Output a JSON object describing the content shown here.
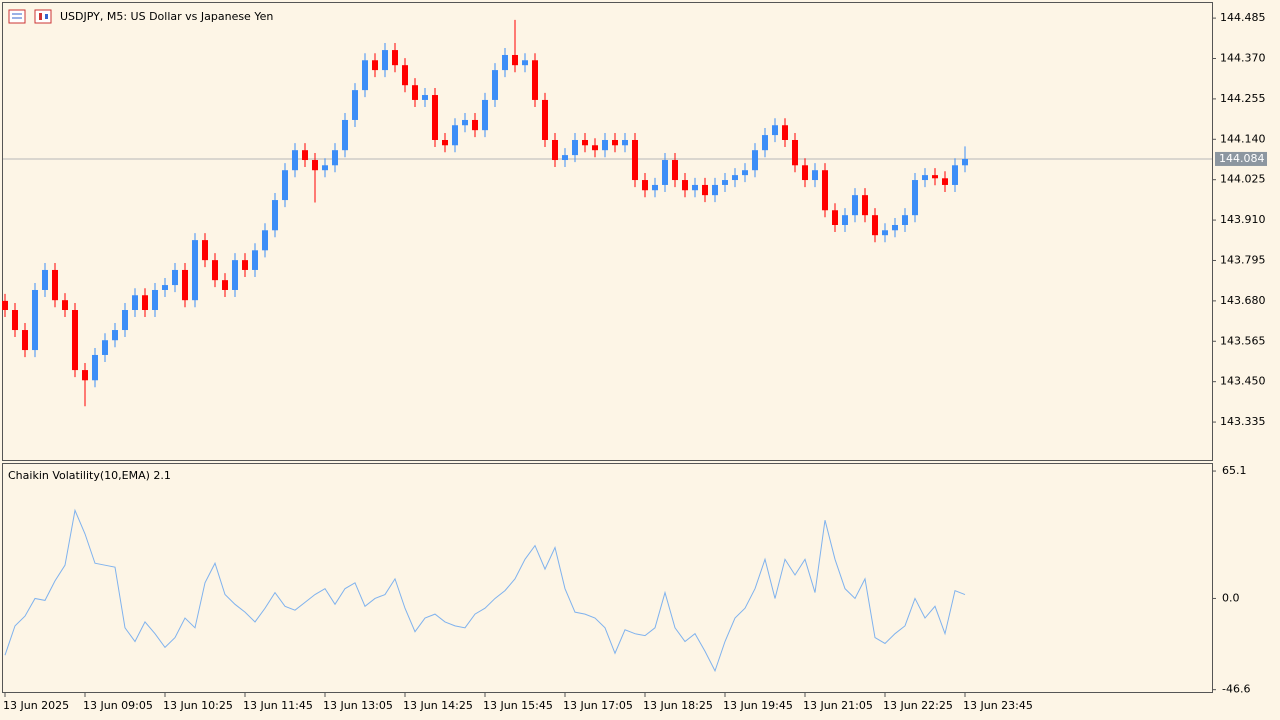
{
  "chart_data": [
    {
      "type": "candlestick",
      "title": "USDJPY, M5:  US Dollar vs Japanese Yen",
      "up_color": "#3d8ef7",
      "down_color": "#ff0000",
      "ylim": [
        143.227,
        144.528
      ],
      "yticks": [
        144.485,
        {
          "value": 144.37,
          "label": "144.370"
        },
        144.255,
        {
          "value": 144.14,
          "label": "144.140"
        },
        144.025,
        {
          "value": 143.91,
          "label": "143.910"
        },
        143.795,
        {
          "value": 143.68,
          "label": "143.680"
        },
        143.565,
        {
          "value": 143.45,
          "label": "143.450"
        },
        143.335
      ],
      "current_price": 144.084,
      "xticks": [
        {
          "value": 0,
          "label": "13 Jun 2025"
        },
        {
          "value": 8,
          "label": "13 Jun 09:05"
        },
        {
          "value": 16,
          "label": "13 Jun 10:25"
        },
        {
          "value": 24,
          "label": "13 Jun 11:45"
        },
        {
          "value": 32,
          "label": "13 Jun 13:05"
        },
        {
          "value": 40,
          "label": "13 Jun 14:25"
        },
        {
          "value": 48,
          "label": "13 Jun 15:45"
        },
        {
          "value": 56,
          "label": "13 Jun 17:05"
        },
        {
          "value": 64,
          "label": "13 Jun 18:25"
        },
        {
          "value": 72,
          "label": "13 Jun 19:45"
        },
        {
          "value": 80,
          "label": "13 Jun 21:05"
        },
        {
          "value": 88,
          "label": "13 Jun 22:25"
        },
        {
          "value": 96,
          "label": "13 Jun 23:45"
        }
      ],
      "candles": [
        [
          143.68,
          143.7,
          143.634,
          143.654
        ],
        [
          143.654,
          143.674,
          143.577,
          143.597
        ],
        [
          143.597,
          143.617,
          143.52,
          143.54
        ],
        [
          143.54,
          143.731,
          143.52,
          143.711
        ],
        [
          143.711,
          143.788,
          143.691,
          143.768
        ],
        [
          143.768,
          143.788,
          143.662,
          143.682
        ],
        [
          143.682,
          143.702,
          143.634,
          143.654
        ],
        [
          143.654,
          143.674,
          143.463,
          143.483
        ],
        [
          143.483,
          143.503,
          143.38,
          143.454
        ],
        [
          143.454,
          143.546,
          143.434,
          143.526
        ],
        [
          143.526,
          143.588,
          143.506,
          143.568
        ],
        [
          143.568,
          143.617,
          143.548,
          143.597
        ],
        [
          143.597,
          143.674,
          143.577,
          143.654
        ],
        [
          143.654,
          143.716,
          143.634,
          143.696
        ],
        [
          143.696,
          143.716,
          143.634,
          143.654
        ],
        [
          143.654,
          143.731,
          143.634,
          143.711
        ],
        [
          143.711,
          143.745,
          143.691,
          143.725
        ],
        [
          143.725,
          143.788,
          143.705,
          143.768
        ],
        [
          143.768,
          143.788,
          143.662,
          143.682
        ],
        [
          143.682,
          143.873,
          143.662,
          143.853
        ],
        [
          143.853,
          143.873,
          143.776,
          143.796
        ],
        [
          143.796,
          143.816,
          143.719,
          143.739
        ],
        [
          143.739,
          143.759,
          143.691,
          143.711
        ],
        [
          143.711,
          143.816,
          143.691,
          143.796
        ],
        [
          143.796,
          143.816,
          143.748,
          143.768
        ],
        [
          143.768,
          143.844,
          143.748,
          143.824
        ],
        [
          143.824,
          143.901,
          143.804,
          143.881
        ],
        [
          143.881,
          143.987,
          143.861,
          143.967
        ],
        [
          143.967,
          144.072,
          143.947,
          144.052
        ],
        [
          144.052,
          144.129,
          144.032,
          144.109
        ],
        [
          144.109,
          144.129,
          144.061,
          144.081
        ],
        [
          144.081,
          144.101,
          143.96,
          144.052
        ],
        [
          144.052,
          144.086,
          144.032,
          144.066
        ],
        [
          144.066,
          144.129,
          144.046,
          144.109
        ],
        [
          144.109,
          144.215,
          144.089,
          144.195
        ],
        [
          144.195,
          144.3,
          144.175,
          144.28
        ],
        [
          144.28,
          144.385,
          144.26,
          144.365
        ],
        [
          144.365,
          144.385,
          144.317,
          144.337
        ],
        [
          144.337,
          144.414,
          144.317,
          144.394
        ],
        [
          144.394,
          144.414,
          144.331,
          144.351
        ],
        [
          144.351,
          144.371,
          144.274,
          144.294
        ],
        [
          144.294,
          144.314,
          144.232,
          144.252
        ],
        [
          144.252,
          144.286,
          144.232,
          144.266
        ],
        [
          144.266,
          144.286,
          144.118,
          144.138
        ],
        [
          144.138,
          144.158,
          144.103,
          144.123
        ],
        [
          144.123,
          144.2,
          144.103,
          144.18
        ],
        [
          144.18,
          144.215,
          144.16,
          144.195
        ],
        [
          144.195,
          144.215,
          144.146,
          144.166
        ],
        [
          144.166,
          144.272,
          144.146,
          144.252
        ],
        [
          144.252,
          144.357,
          144.232,
          144.337
        ],
        [
          144.337,
          144.4,
          144.317,
          144.38
        ],
        [
          144.38,
          144.48,
          144.331,
          144.351
        ],
        [
          144.351,
          144.385,
          144.331,
          144.365
        ],
        [
          144.365,
          144.385,
          144.232,
          144.252
        ],
        [
          144.252,
          144.272,
          144.118,
          144.138
        ],
        [
          144.138,
          144.158,
          144.061,
          144.081
        ],
        [
          144.081,
          144.115,
          144.061,
          144.095
        ],
        [
          144.095,
          144.158,
          144.075,
          144.138
        ],
        [
          144.138,
          144.158,
          144.103,
          144.123
        ],
        [
          144.123,
          144.143,
          144.089,
          144.109
        ],
        [
          144.109,
          144.158,
          144.089,
          144.138
        ],
        [
          144.138,
          144.158,
          144.103,
          144.123
        ],
        [
          144.123,
          144.158,
          144.103,
          144.138
        ],
        [
          144.138,
          144.158,
          144.004,
          144.024
        ],
        [
          144.024,
          144.044,
          143.975,
          143.995
        ],
        [
          143.995,
          144.03,
          143.975,
          144.01
        ],
        [
          144.01,
          144.101,
          143.99,
          144.081
        ],
        [
          144.081,
          144.101,
          144.004,
          144.024
        ],
        [
          144.024,
          144.044,
          143.975,
          143.995
        ],
        [
          143.995,
          144.03,
          143.975,
          144.01
        ],
        [
          144.01,
          144.03,
          143.961,
          143.981
        ],
        [
          143.981,
          144.03,
          143.961,
          144.01
        ],
        [
          144.01,
          144.044,
          143.99,
          144.024
        ],
        [
          144.024,
          144.058,
          144.004,
          144.038
        ],
        [
          144.038,
          144.072,
          144.018,
          144.052
        ],
        [
          144.052,
          144.129,
          144.032,
          144.109
        ],
        [
          144.109,
          144.172,
          144.089,
          144.152
        ],
        [
          144.152,
          144.2,
          144.132,
          144.18
        ],
        [
          144.18,
          144.2,
          144.118,
          144.138
        ],
        [
          144.138,
          144.158,
          144.046,
          144.066
        ],
        [
          144.066,
          144.086,
          144.004,
          144.024
        ],
        [
          144.024,
          144.072,
          144.004,
          144.052
        ],
        [
          144.052,
          144.072,
          143.918,
          143.938
        ],
        [
          143.938,
          143.958,
          143.876,
          143.896
        ],
        [
          143.896,
          143.944,
          143.876,
          143.924
        ],
        [
          143.924,
          144.001,
          143.904,
          143.981
        ],
        [
          143.981,
          144.001,
          143.904,
          143.924
        ],
        [
          143.924,
          143.944,
          143.847,
          143.867
        ],
        [
          143.867,
          143.901,
          143.847,
          143.881
        ],
        [
          143.881,
          143.916,
          143.861,
          143.896
        ],
        [
          143.896,
          143.944,
          143.876,
          143.924
        ],
        [
          143.924,
          144.044,
          143.904,
          144.024
        ],
        [
          144.024,
          144.058,
          144.004,
          144.038
        ],
        [
          144.038,
          144.058,
          144.009,
          144.029
        ],
        [
          144.029,
          144.049,
          143.99,
          144.01
        ],
        [
          144.01,
          144.086,
          143.99,
          144.066
        ],
        [
          144.066,
          144.12,
          144.046,
          144.084
        ]
      ]
    },
    {
      "type": "line",
      "title": "Chaikin Volatility(10,EMA) 2.1",
      "color": "#7fb2ee",
      "ylim": [
        -47.8,
        68.7
      ],
      "yticks": [
        65.1,
        {
          "value": 0,
          "label": "0.0"
        },
        -46.6
      ],
      "values": [
        -29,
        -14,
        -9,
        0,
        -1,
        9,
        17,
        45,
        33,
        18,
        17,
        16,
        -15,
        -22,
        -12,
        -18,
        -25,
        -20,
        -10,
        -15,
        8,
        18,
        2,
        -3,
        -7,
        -12,
        -5,
        3,
        -4,
        -6,
        -2,
        2,
        5,
        -3,
        5,
        8,
        -4,
        0,
        2,
        10,
        -5,
        -17,
        -10,
        -8,
        -12,
        -14,
        -15,
        -8,
        -5,
        0,
        4,
        10,
        20,
        27,
        15,
        26,
        5,
        -7,
        -8,
        -10,
        -15,
        -28,
        -16,
        -18,
        -19,
        -15,
        3,
        -15,
        -22,
        -18,
        -27,
        -37,
        -22,
        -10,
        -5,
        5,
        20,
        0,
        20,
        12,
        20,
        3,
        40,
        20,
        5,
        0,
        10,
        -20,
        -23,
        -18,
        -14,
        0,
        -10,
        -4,
        -18,
        4,
        2
      ]
    }
  ]
}
